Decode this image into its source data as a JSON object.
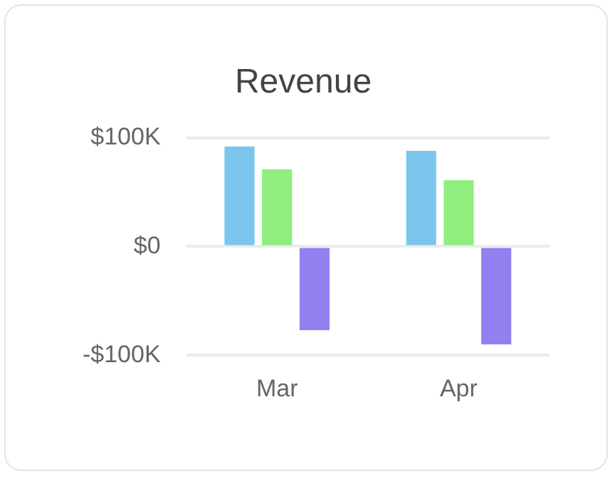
{
  "chart_data": {
    "type": "bar",
    "title": "Revenue",
    "categories": [
      "Mar",
      "Apr"
    ],
    "series": [
      {
        "color": "#7cc6ee",
        "values": [
          92000,
          88000
        ]
      },
      {
        "color": "#90ee7e",
        "values": [
          71000,
          61000
        ]
      },
      {
        "color": "#9180f0",
        "values": [
          -77000,
          -90000
        ]
      }
    ],
    "ylim": [
      -100000,
      100000
    ],
    "yticks": [
      {
        "value": -100000,
        "label": "-$100K"
      },
      {
        "value": 0,
        "label": "$0"
      },
      {
        "value": 100000,
        "label": "$100K"
      }
    ],
    "grid": "y",
    "legend": false
  }
}
